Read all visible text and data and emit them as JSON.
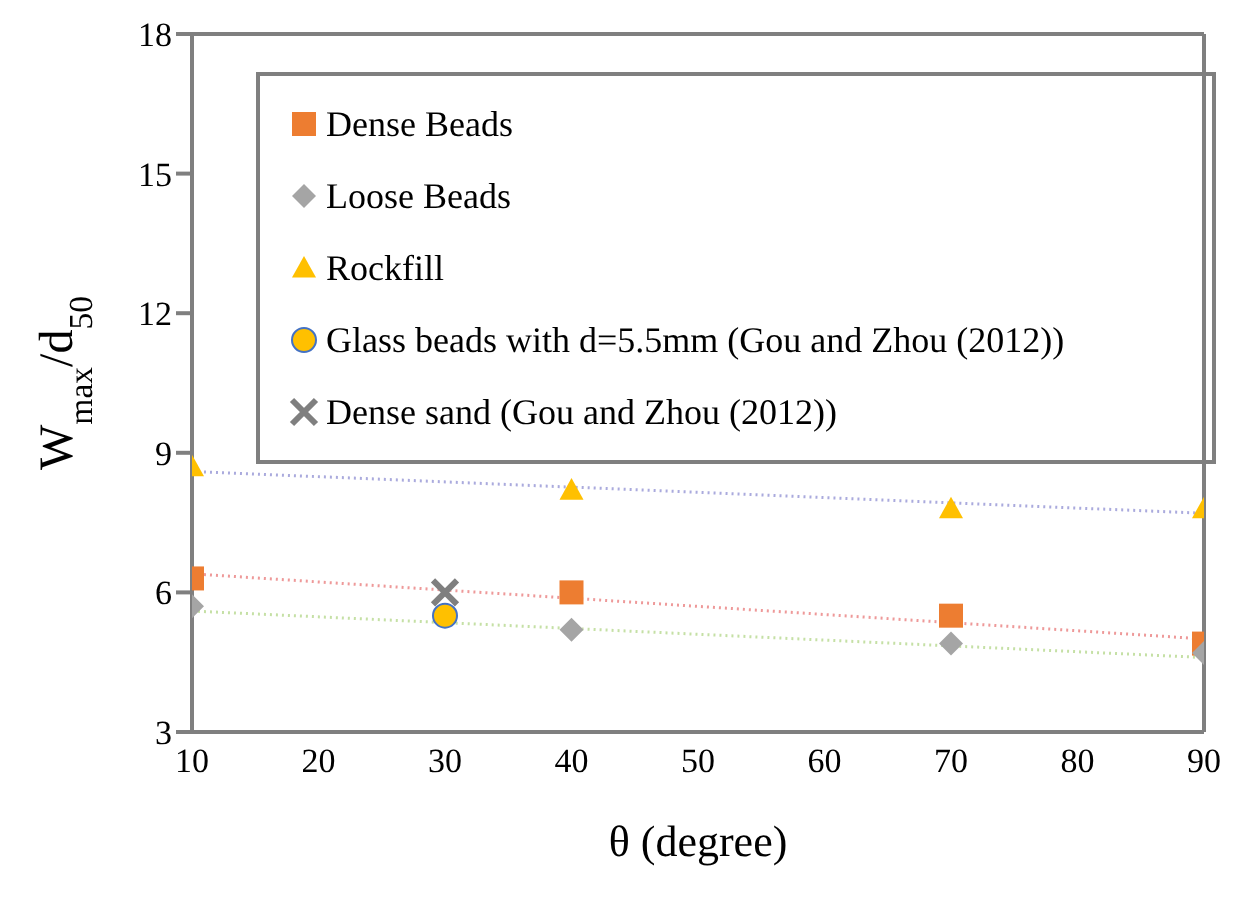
{
  "chart_data": {
    "type": "scatter",
    "xlabel": "θ (degree)",
    "ylabel": "W$_{max}$/d$_{50}$",
    "xlim": [
      10,
      90
    ],
    "xticks": [
      10,
      20,
      30,
      40,
      50,
      60,
      70,
      80,
      90
    ],
    "ylim": [
      3,
      18
    ],
    "yticks": [
      3,
      6,
      9,
      12,
      15,
      18
    ],
    "legend": "top",
    "series": [
      {
        "name": "Dense Beads",
        "color": "#ed7d31",
        "marker": "square",
        "x": [
          10,
          40,
          70,
          90
        ],
        "values": [
          6.3,
          6.0,
          5.5,
          4.9
        ]
      },
      {
        "name": "Loose Beads",
        "color": "#a5a5a5",
        "marker": "diamond",
        "x": [
          10,
          40,
          70,
          90
        ],
        "values": [
          5.7,
          5.2,
          4.9,
          4.7
        ]
      },
      {
        "name": "Rockfill",
        "color": "#ffc000",
        "marker": "triangle",
        "x": [
          10,
          40,
          70,
          90
        ],
        "values": [
          8.7,
          8.2,
          7.8,
          7.8
        ]
      },
      {
        "name": "Glass beads with d=5.5mm (Gou and Zhou (2012))",
        "color": "#ffc000",
        "marker": "circle",
        "x": [
          30
        ],
        "values": [
          5.5
        ]
      },
      {
        "name": "Dense sand (Gou and Zhou (2012))",
        "color": "#7f7f7f",
        "marker": "cross",
        "x": [
          30
        ],
        "values": [
          6.0
        ]
      },
      {
        "type": "line",
        "color": "#ee9999",
        "marker": "none",
        "line_style": "dotted",
        "x": [
          10,
          90
        ],
        "values": [
          6.4,
          5.0
        ]
      },
      {
        "type": "line",
        "color": "#c5e0a5",
        "marker": "none",
        "line_style": "dotted",
        "x": [
          10,
          90
        ],
        "values": [
          5.6,
          4.6
        ]
      },
      {
        "type": "line",
        "color": "#aaaadd",
        "marker": "none",
        "line_style": "dotted",
        "x": [
          10,
          90
        ],
        "values": [
          8.6,
          7.7
        ]
      }
    ]
  }
}
